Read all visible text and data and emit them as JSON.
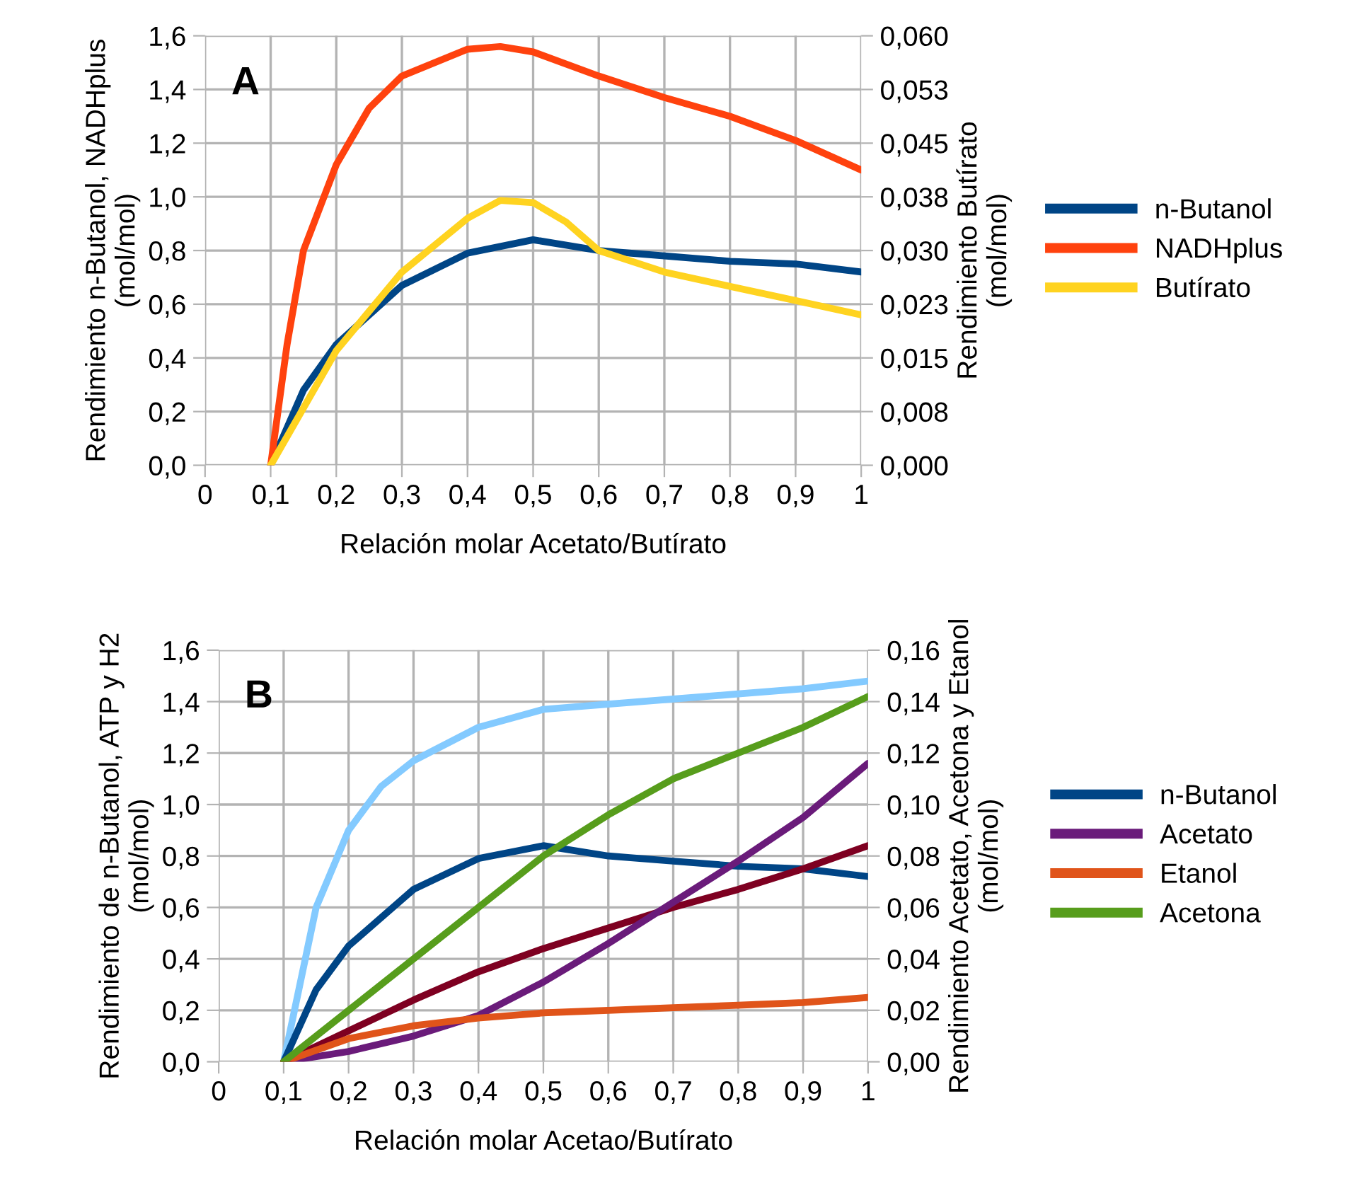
{
  "chart_data": [
    {
      "type": "line",
      "annotations": [
        "A"
      ],
      "xlabel": "Relación molar Acetato/Butírato",
      "ylabel": "Rendimiento n-Butanol, NADHplus\n(mol/mol)",
      "y2label": "Rendimiento Butírato\n(mol/mol)",
      "grid": true,
      "legend": "right",
      "marker": "none",
      "line_style": "solid",
      "xlim": [
        0,
        1
      ],
      "xticks": [
        0,
        {
          "value": 0.1,
          "label": "0,1"
        },
        {
          "value": 0.2,
          "label": "0,2"
        },
        {
          "value": 0.3,
          "label": "0,3"
        },
        {
          "value": 0.4,
          "label": "0,4"
        },
        {
          "value": 0.5,
          "label": "0,5"
        },
        {
          "value": 0.6,
          "label": "0,6"
        },
        {
          "value": 0.7,
          "label": "0,7"
        },
        {
          "value": 0.8,
          "label": "0,8"
        },
        {
          "value": 0.9,
          "label": "0,9"
        },
        1
      ],
      "ylim": [
        0,
        1.6
      ],
      "yticks": [
        {
          "value": 0,
          "label": "0,0"
        },
        {
          "value": 0.2,
          "label": "0,2"
        },
        {
          "value": 0.4,
          "label": "0,4"
        },
        {
          "value": 0.6,
          "label": "0,6"
        },
        {
          "value": 0.8,
          "label": "0,8"
        },
        {
          "value": 1.0,
          "label": "1,0"
        },
        {
          "value": 1.2,
          "label": "1,2"
        },
        {
          "value": 1.4,
          "label": "1,4"
        },
        {
          "value": 1.6,
          "label": "1,6"
        }
      ],
      "y2lim": [
        0,
        0.06
      ],
      "y2ticks": [
        {
          "value": 0,
          "label": "0,000"
        },
        {
          "value": 0.0075,
          "label": "0,008"
        },
        {
          "value": 0.015,
          "label": "0,015"
        },
        {
          "value": 0.0225,
          "label": "0,023"
        },
        {
          "value": 0.03,
          "label": "0,030"
        },
        {
          "value": 0.0375,
          "label": "0,038"
        },
        {
          "value": 0.045,
          "label": "0,045"
        },
        {
          "value": 0.0525,
          "label": "0,053"
        },
        {
          "value": 0.06,
          "label": "0,060"
        }
      ],
      "series": [
        {
          "name": "n-Butanol",
          "color": "#004586",
          "x": [
            0.1,
            0.15,
            0.2,
            0.3,
            0.4,
            0.5,
            0.6,
            0.7,
            0.8,
            0.9,
            1.0
          ],
          "values": [
            0,
            0.28,
            0.45,
            0.67,
            0.79,
            0.84,
            0.8,
            0.78,
            0.76,
            0.75,
            0.72
          ]
        },
        {
          "name": "NADHplus",
          "color": "#ff420e",
          "x": [
            0.1,
            0.125,
            0.15,
            0.2,
            0.25,
            0.3,
            0.4,
            0.45,
            0.5,
            0.6,
            0.7,
            0.8,
            0.9,
            1.0
          ],
          "values": [
            0,
            0.45,
            0.8,
            1.12,
            1.33,
            1.45,
            1.55,
            1.56,
            1.54,
            1.45,
            1.37,
            1.3,
            1.21,
            1.1
          ]
        },
        {
          "name": "Butírato",
          "color": "#ffd320",
          "axis": "y2",
          "x": [
            0.1,
            0.2,
            0.3,
            0.4,
            0.45,
            0.5,
            0.55,
            0.6,
            0.7,
            0.8,
            0.9,
            1.0
          ],
          "values": [
            0,
            0.016,
            0.027,
            0.0345,
            0.037,
            0.0367,
            0.034,
            0.03,
            0.027,
            0.025,
            0.023,
            0.021
          ]
        }
      ]
    },
    {
      "type": "line",
      "annotations": [
        "B"
      ],
      "xlabel": "Relación molar Acetao/Butírato",
      "ylabel": "Rendimiento de n-Butanol, ATP y H2\n(mol/mol)",
      "y2label": "Rendimiento Acetato, Acetona y Etanol\n(mol/mol)",
      "grid": true,
      "legend": "right",
      "marker": "none",
      "line_style": "solid",
      "xlim": [
        0,
        1
      ],
      "xticks": [
        0,
        {
          "value": 0.1,
          "label": "0,1"
        },
        {
          "value": 0.2,
          "label": "0,2"
        },
        {
          "value": 0.3,
          "label": "0,3"
        },
        {
          "value": 0.4,
          "label": "0,4"
        },
        {
          "value": 0.5,
          "label": "0,5"
        },
        {
          "value": 0.6,
          "label": "0,6"
        },
        {
          "value": 0.7,
          "label": "0,7"
        },
        {
          "value": 0.8,
          "label": "0,8"
        },
        {
          "value": 0.9,
          "label": "0,9"
        },
        1
      ],
      "ylim": [
        0,
        1.6
      ],
      "yticks": [
        {
          "value": 0,
          "label": "0,0"
        },
        {
          "value": 0.2,
          "label": "0,2"
        },
        {
          "value": 0.4,
          "label": "0,4"
        },
        {
          "value": 0.6,
          "label": "0,6"
        },
        {
          "value": 0.8,
          "label": "0,8"
        },
        {
          "value": 1.0,
          "label": "1,0"
        },
        {
          "value": 1.2,
          "label": "1,2"
        },
        {
          "value": 1.4,
          "label": "1,4"
        },
        {
          "value": 1.6,
          "label": "1,6"
        }
      ],
      "y2lim": [
        0,
        0.16
      ],
      "y2ticks": [
        {
          "value": 0,
          "label": "0,00"
        },
        {
          "value": 0.02,
          "label": "0,02"
        },
        {
          "value": 0.04,
          "label": "0,04"
        },
        {
          "value": 0.06,
          "label": "0,06"
        },
        {
          "value": 0.08,
          "label": "0,08"
        },
        {
          "value": 0.1,
          "label": "0,10"
        },
        {
          "value": 0.12,
          "label": "0,12"
        },
        {
          "value": 0.14,
          "label": "0,14"
        },
        {
          "value": 0.16,
          "label": "0,16"
        }
      ],
      "series": [
        {
          "color": "#83caff",
          "x": [
            0.1,
            0.15,
            0.2,
            0.25,
            0.3,
            0.4,
            0.5,
            0.6,
            0.7,
            0.8,
            0.9,
            1.0
          ],
          "values": [
            0,
            0.6,
            0.9,
            1.07,
            1.17,
            1.3,
            1.37,
            1.39,
            1.41,
            1.43,
            1.45,
            1.48
          ]
        },
        {
          "name": "n-Butanol",
          "color": "#004586",
          "x": [
            0.1,
            0.15,
            0.2,
            0.3,
            0.4,
            0.5,
            0.6,
            0.7,
            0.8,
            0.9,
            1.0
          ],
          "values": [
            0,
            0.28,
            0.45,
            0.67,
            0.79,
            0.84,
            0.8,
            0.78,
            0.76,
            0.75,
            0.72
          ]
        },
        {
          "color": "#7e0021",
          "x": [
            0.1,
            0.2,
            0.3,
            0.4,
            0.5,
            0.6,
            0.7,
            0.8,
            0.9,
            1.0
          ],
          "values": [
            0,
            0.12,
            0.24,
            0.35,
            0.44,
            0.52,
            0.6,
            0.67,
            0.75,
            0.84
          ]
        },
        {
          "name": "Acetato",
          "color": "#6a1b7a",
          "axis": "y2",
          "x": [
            0.1,
            0.2,
            0.3,
            0.4,
            0.5,
            0.6,
            0.7,
            0.8,
            0.9,
            1.0
          ],
          "values": [
            0,
            0.004,
            0.01,
            0.018,
            0.031,
            0.046,
            0.062,
            0.078,
            0.095,
            0.116
          ]
        },
        {
          "name": "Etanol",
          "color": "#e0541a",
          "axis": "y2",
          "x": [
            0.1,
            0.2,
            0.3,
            0.4,
            0.5,
            0.6,
            0.7,
            0.8,
            0.9,
            1.0
          ],
          "values": [
            0,
            0.009,
            0.014,
            0.017,
            0.019,
            0.02,
            0.021,
            0.022,
            0.023,
            0.025
          ]
        },
        {
          "name": "Acetona",
          "color": "#579d1c",
          "axis": "y2",
          "x": [
            0.1,
            0.2,
            0.3,
            0.4,
            0.5,
            0.6,
            0.7,
            0.8,
            0.9,
            1.0
          ],
          "values": [
            0,
            0.02,
            0.04,
            0.06,
            0.08,
            0.096,
            0.11,
            0.12,
            0.13,
            0.142
          ]
        }
      ]
    }
  ]
}
